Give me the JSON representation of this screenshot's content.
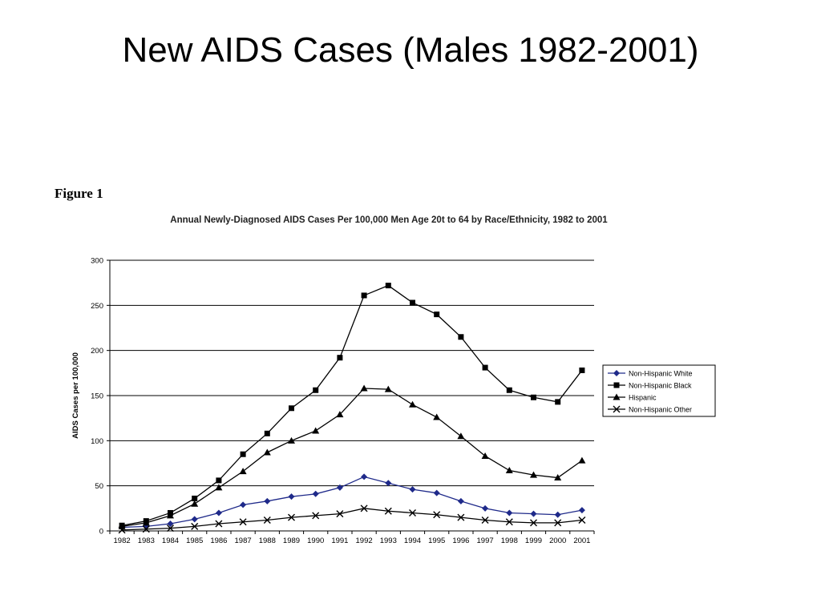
{
  "slide": {
    "title": "New AIDS Cases (Males 1982-2001)"
  },
  "figure_label": "Figure 1",
  "chart_data": {
    "type": "line",
    "title": "Annual Newly-Diagnosed AIDS Cases Per 100,000 Men Age 20t to 64 by Race/Ethnicity, 1982 to 2001",
    "xlabel": "",
    "ylabel": "AIDS Cases per 100,000",
    "ylim": [
      0,
      300
    ],
    "yticks": [
      0,
      50,
      100,
      150,
      200,
      250,
      300
    ],
    "grid": true,
    "legend_position": "right",
    "categories": [
      "1982",
      "1983",
      "1984",
      "1985",
      "1986",
      "1987",
      "1988",
      "1989",
      "1990",
      "1991",
      "1992",
      "1993",
      "1994",
      "1995",
      "1996",
      "1997",
      "1998",
      "1999",
      "2000",
      "2001"
    ],
    "series": [
      {
        "name": "Non-Hispanic White",
        "marker": "diamond",
        "color": "#1f2a8a",
        "values": [
          4,
          5,
          8,
          13,
          20,
          29,
          33,
          38,
          41,
          48,
          60,
          53,
          46,
          42,
          33,
          25,
          20,
          19,
          18,
          23
        ]
      },
      {
        "name": "Non-Hispanic Black",
        "marker": "square",
        "color": "#000000",
        "values": [
          6,
          11,
          20,
          36,
          56,
          85,
          108,
          136,
          156,
          192,
          261,
          272,
          253,
          240,
          215,
          181,
          156,
          148,
          143,
          178
        ]
      },
      {
        "name": "Hispanic",
        "marker": "triangle",
        "color": "#000000",
        "values": [
          5,
          9,
          17,
          30,
          48,
          66,
          87,
          100,
          111,
          129,
          158,
          157,
          140,
          126,
          105,
          83,
          67,
          62,
          59,
          78
        ]
      },
      {
        "name": "Non-Hispanic Other",
        "marker": "x",
        "color": "#000000",
        "values": [
          1,
          2,
          3,
          5,
          8,
          10,
          12,
          15,
          17,
          19,
          25,
          22,
          20,
          18,
          15,
          12,
          10,
          9,
          9,
          12
        ]
      }
    ]
  }
}
